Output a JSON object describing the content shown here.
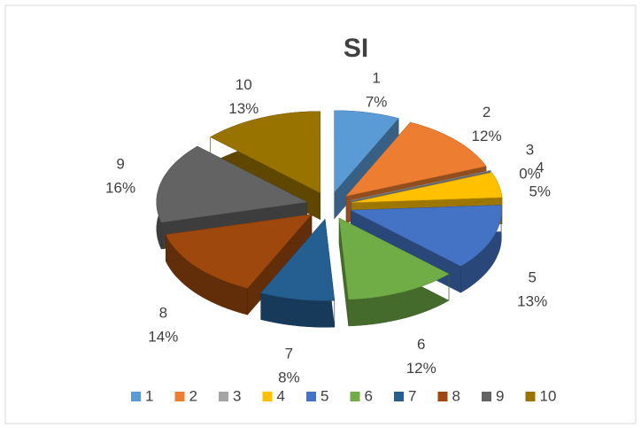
{
  "chart_data": {
    "type": "pie",
    "title": "SI",
    "categories": [
      "1",
      "2",
      "3",
      "4",
      "5",
      "6",
      "7",
      "8",
      "9",
      "10"
    ],
    "values": [
      7,
      12,
      0,
      5,
      13,
      12,
      8,
      14,
      16,
      13
    ],
    "value_labels": [
      "7%",
      "12%",
      "0%",
      "5%",
      "13%",
      "12%",
      "8%",
      "14%",
      "16%",
      "13%"
    ],
    "colors": [
      "#5b9bd5",
      "#ed7d31",
      "#a5a5a5",
      "#ffc000",
      "#4472c4",
      "#70ad47",
      "#255e91",
      "#9e480e",
      "#636363",
      "#997300"
    ],
    "legend": "bottom"
  }
}
